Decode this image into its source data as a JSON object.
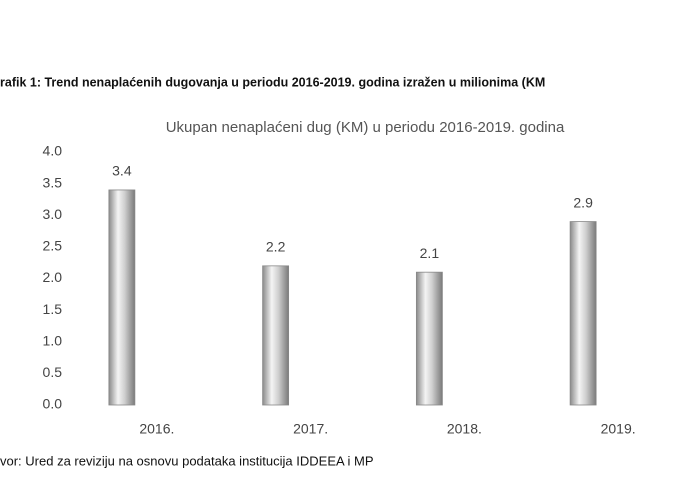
{
  "caption": "rafik 1: Trend nenaplaćenih dugovanja u periodu 2016-2019. godina izražen u milionima (KM",
  "chart_data": {
    "type": "bar",
    "title": "Ukupan nenaplaćeni dug (KM) u periodu 2016-2019. godina",
    "categories": [
      "2016.",
      "2017.",
      "2018.",
      "2019."
    ],
    "values": [
      3.4,
      2.2,
      2.1,
      2.9
    ],
    "color": "#c8c8c8",
    "ylim": [
      0,
      4
    ],
    "yticks": [
      {
        "value": 0,
        "label": "0.0"
      },
      {
        "value": 0.5,
        "label": "0.5"
      },
      {
        "value": 1,
        "label": "1.0"
      },
      {
        "value": 1.5,
        "label": "1.5"
      },
      {
        "value": 2,
        "label": "2.0"
      },
      {
        "value": 2.5,
        "label": "2.5"
      },
      {
        "value": 3,
        "label": "3.0"
      },
      {
        "value": 3.5,
        "label": "3.5"
      },
      {
        "value": 4,
        "label": "4.0"
      }
    ],
    "grid": false
  },
  "source": "vor: Ured za reviziju na osnovu podataka institucija IDDEEA i MP"
}
